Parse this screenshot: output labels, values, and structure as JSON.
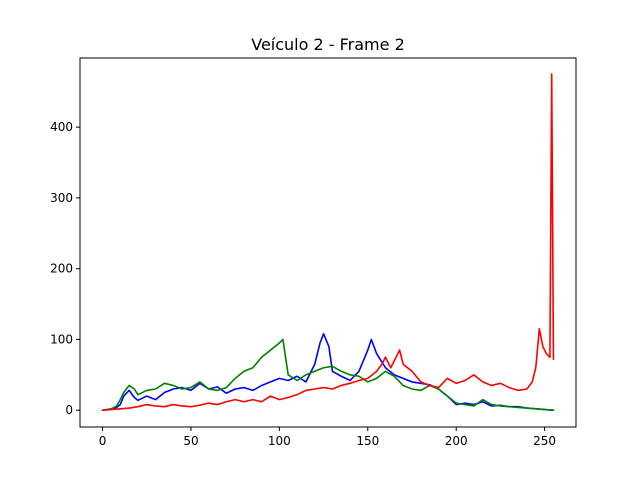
{
  "chart_data": {
    "type": "line",
    "title": "Veículo 2 - Frame 2",
    "xlabel": "",
    "ylabel": "",
    "xlim": [
      -12.75,
      267.75
    ],
    "ylim": [
      -23.7,
      497.7
    ],
    "grid": false,
    "xticks": [
      0,
      50,
      100,
      150,
      200,
      250
    ],
    "yticks": [
      0,
      100,
      200,
      300,
      400
    ],
    "series": [
      {
        "color": "#0000ff",
        "x": [
          0,
          5,
          8,
          10,
          12,
          15,
          18,
          20,
          25,
          30,
          35,
          40,
          45,
          50,
          55,
          60,
          65,
          70,
          75,
          80,
          85,
          90,
          95,
          100,
          105,
          110,
          115,
          120,
          123,
          125,
          128,
          130,
          135,
          140,
          145,
          150,
          152,
          155,
          160,
          165,
          170,
          175,
          180,
          185,
          190,
          195,
          200,
          205,
          210,
          215,
          220,
          225,
          230,
          235,
          240,
          245,
          250,
          255
        ],
        "values": [
          0,
          2,
          4,
          8,
          20,
          28,
          18,
          14,
          20,
          15,
          25,
          30,
          32,
          28,
          38,
          30,
          33,
          24,
          30,
          32,
          28,
          35,
          40,
          45,
          42,
          48,
          40,
          65,
          95,
          108,
          90,
          55,
          48,
          42,
          55,
          85,
          100,
          80,
          60,
          50,
          45,
          40,
          38,
          36,
          30,
          20,
          8,
          10,
          8,
          12,
          6,
          7,
          5,
          5,
          3,
          2,
          1,
          0
        ]
      },
      {
        "color": "#008000",
        "x": [
          0,
          5,
          8,
          10,
          12,
          15,
          18,
          20,
          25,
          30,
          35,
          40,
          45,
          50,
          55,
          60,
          65,
          70,
          75,
          80,
          85,
          90,
          95,
          100,
          102,
          105,
          110,
          115,
          120,
          125,
          130,
          135,
          140,
          145,
          150,
          155,
          160,
          165,
          170,
          175,
          180,
          185,
          190,
          195,
          200,
          205,
          210,
          215,
          220,
          225,
          230,
          235,
          240,
          245,
          250,
          255
        ],
        "values": [
          0,
          2,
          6,
          15,
          25,
          35,
          30,
          22,
          28,
          30,
          38,
          35,
          30,
          32,
          40,
          30,
          28,
          32,
          45,
          55,
          60,
          75,
          85,
          95,
          100,
          50,
          42,
          50,
          55,
          60,
          62,
          55,
          50,
          48,
          40,
          45,
          55,
          48,
          35,
          30,
          28,
          35,
          30,
          20,
          10,
          8,
          6,
          15,
          8,
          6,
          5,
          4,
          3,
          2,
          1,
          0
        ]
      },
      {
        "color": "#ff0000",
        "x": [
          0,
          5,
          10,
          15,
          20,
          25,
          30,
          35,
          40,
          45,
          50,
          55,
          60,
          65,
          70,
          75,
          80,
          85,
          90,
          95,
          100,
          105,
          110,
          115,
          120,
          125,
          130,
          135,
          140,
          145,
          150,
          155,
          158,
          160,
          163,
          165,
          168,
          170,
          175,
          180,
          185,
          190,
          195,
          200,
          205,
          210,
          215,
          220,
          225,
          230,
          235,
          240,
          243,
          245,
          247,
          249,
          251,
          253,
          254,
          255
        ],
        "values": [
          0,
          1,
          2,
          3,
          5,
          8,
          6,
          5,
          8,
          6,
          5,
          7,
          10,
          8,
          12,
          15,
          12,
          15,
          12,
          20,
          15,
          18,
          22,
          28,
          30,
          32,
          30,
          35,
          38,
          42,
          45,
          55,
          65,
          75,
          60,
          70,
          85,
          65,
          55,
          40,
          35,
          32,
          45,
          38,
          42,
          50,
          40,
          35,
          38,
          32,
          28,
          30,
          40,
          60,
          115,
          90,
          80,
          75,
          475,
          72
        ]
      }
    ]
  }
}
